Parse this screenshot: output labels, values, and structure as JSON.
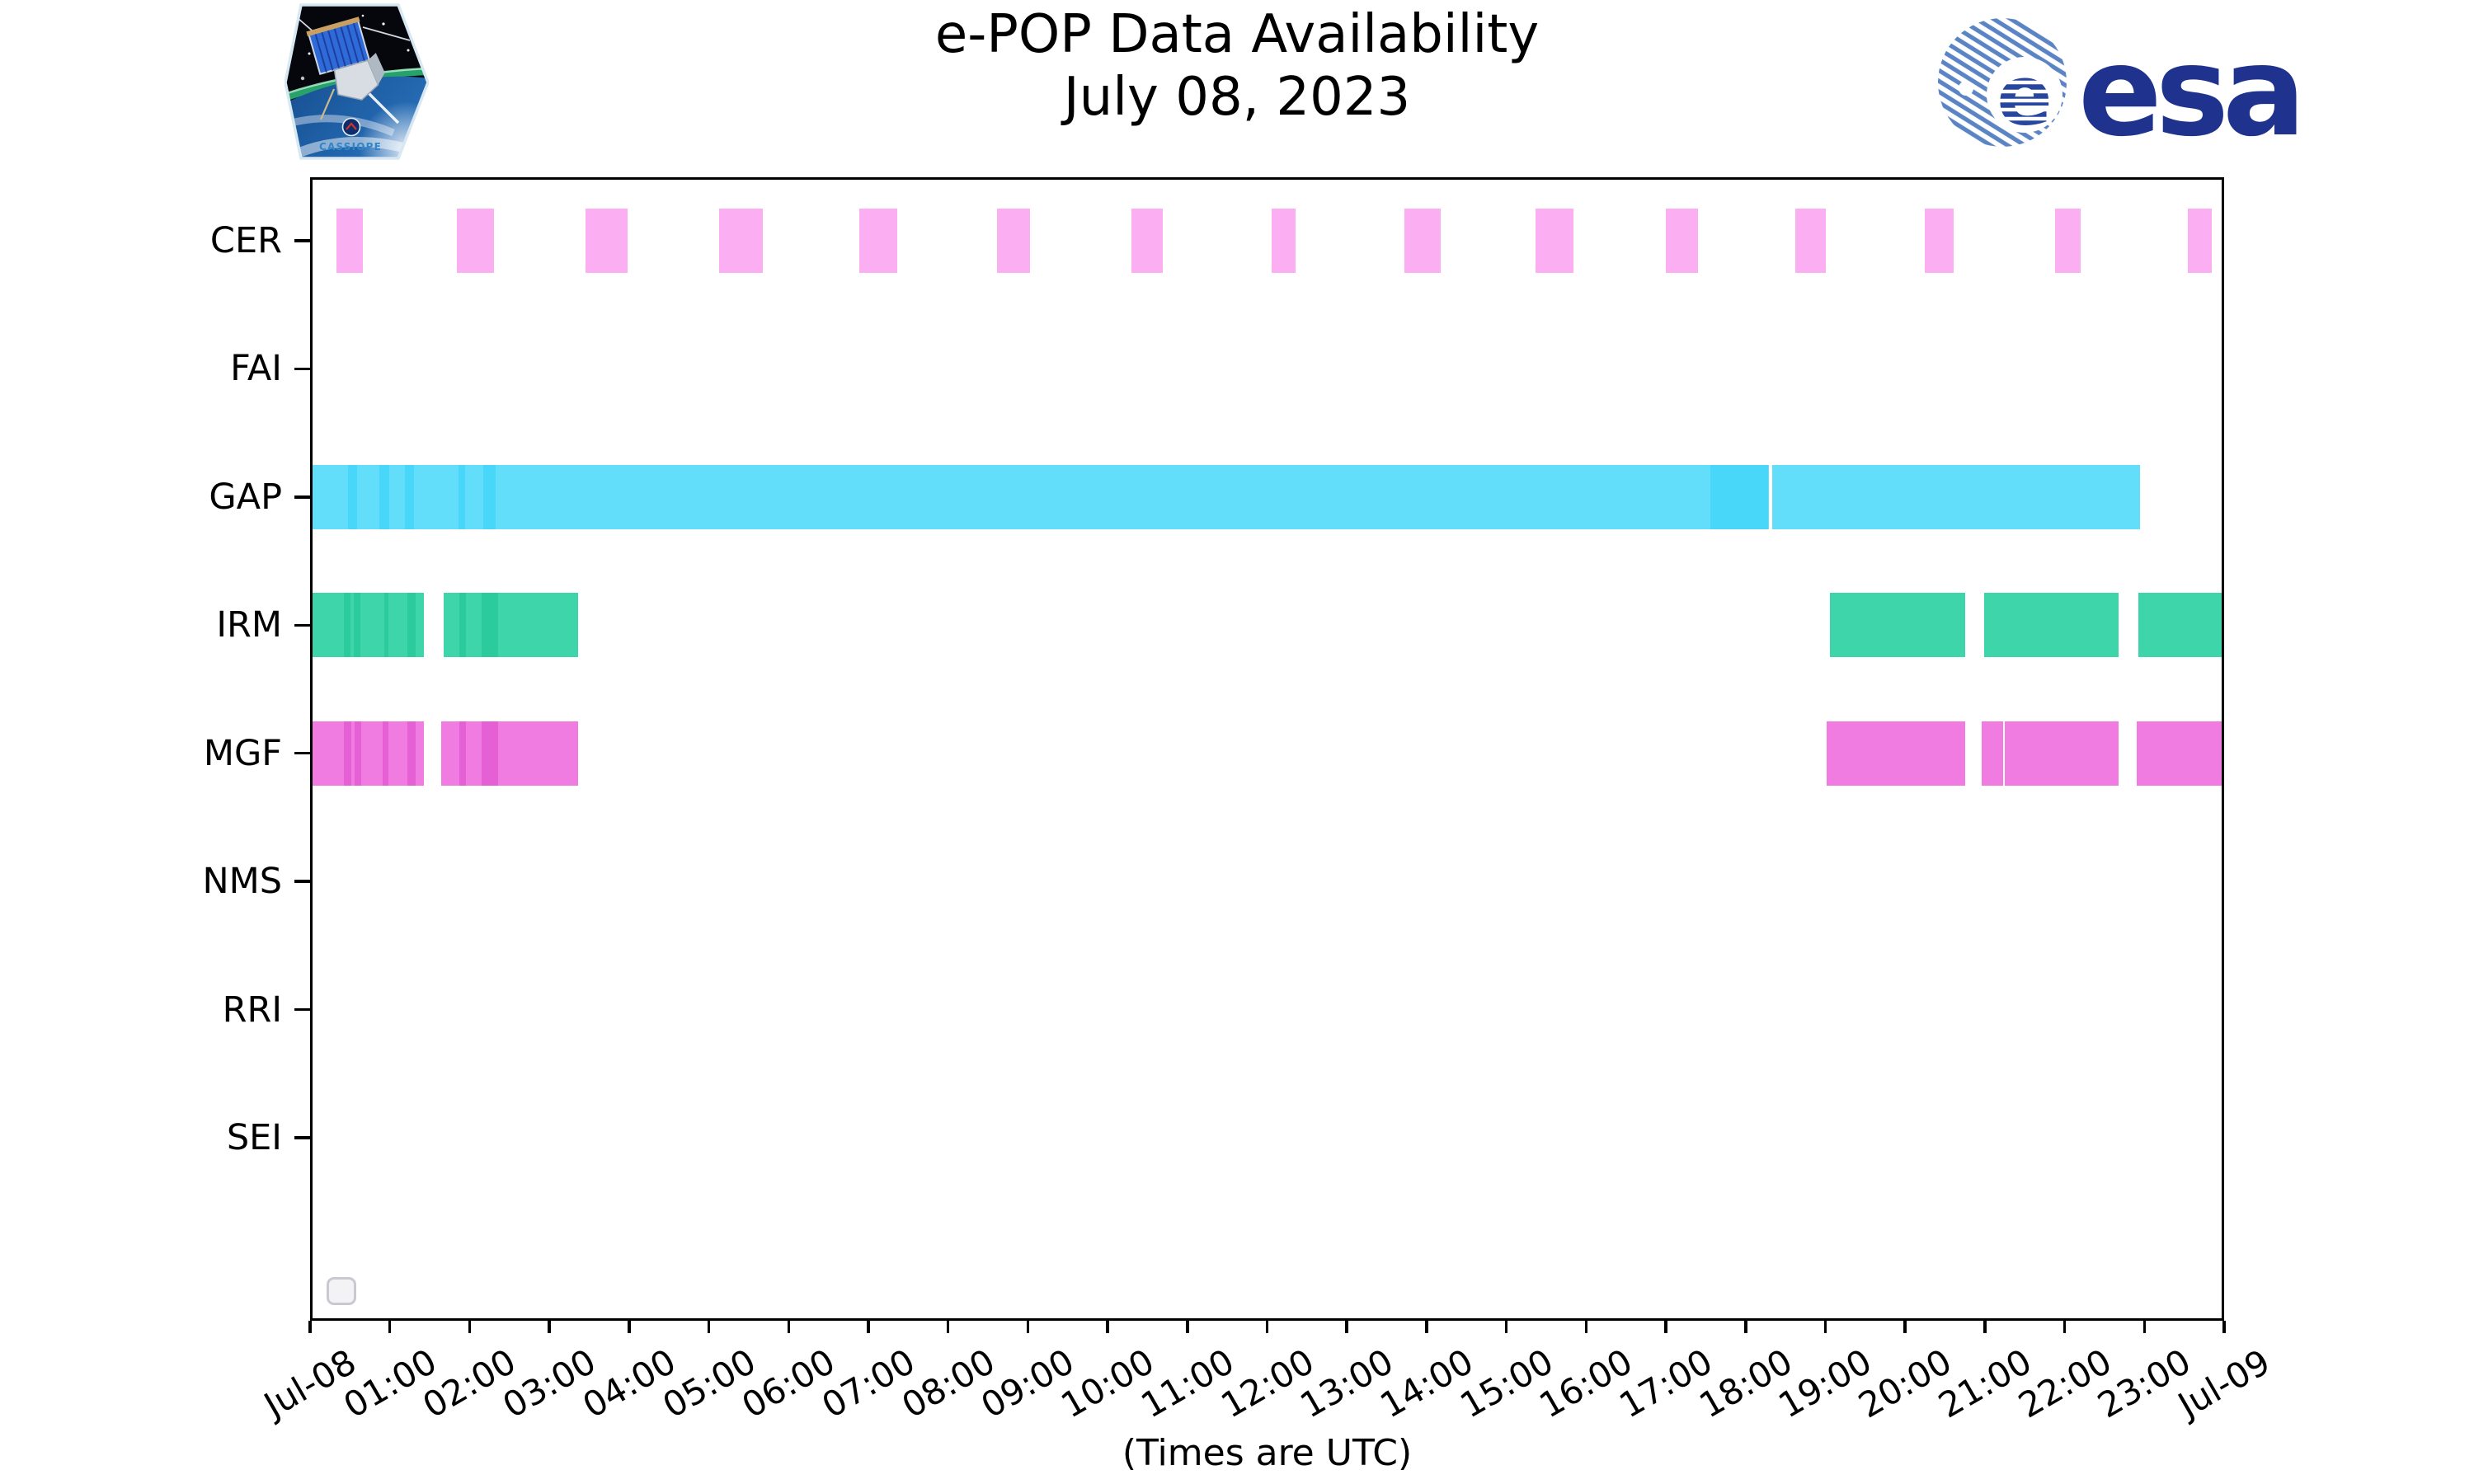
{
  "header": {
    "title_line1": "e-POP Data Availability",
    "title_line2": "July 08, 2023"
  },
  "logos": {
    "cassiope_text": "CASSIOPE",
    "esa_wordmark": "esa"
  },
  "axis": {
    "xlabel": "(Times are UTC)",
    "x_tick_labels": [
      "Jul-08",
      "01:00",
      "02:00",
      "03:00",
      "04:00",
      "05:00",
      "06:00",
      "07:00",
      "08:00",
      "09:00",
      "10:00",
      "11:00",
      "12:00",
      "13:00",
      "14:00",
      "15:00",
      "16:00",
      "17:00",
      "18:00",
      "19:00",
      "20:00",
      "21:00",
      "22:00",
      "23:00",
      "Jul-09"
    ],
    "y_labels": [
      "CER",
      "FAI",
      "GAP",
      "IRM",
      "MGF",
      "NMS",
      "RRI",
      "SEI"
    ]
  },
  "colors": {
    "axis": "#000000",
    "cer": "#fbaef1",
    "gap": "#62defa",
    "gap_dark": "#49d7f9",
    "irm": "#3ed5aa",
    "irm_dark": "#2bcb9e",
    "mgf": "#f07ce1",
    "mgf_dark": "#e55fd5",
    "esa_navy": "#1f338e",
    "esa_ball_blue": "#5b84c4"
  },
  "chart_data": {
    "type": "timeline",
    "title": "e-POP Data Availability",
    "subtitle": "July 08, 2023",
    "x_unit": "hours UTC",
    "x_range": [
      0,
      24
    ],
    "grid": false,
    "rows": [
      {
        "label": "CER",
        "color": "#fbaef1",
        "segments": [
          [
            0.33,
            0.66
          ],
          [
            1.84,
            2.31
          ],
          [
            3.45,
            3.98
          ],
          [
            5.13,
            5.68
          ],
          [
            6.89,
            7.36
          ],
          [
            8.61,
            9.03
          ],
          [
            10.3,
            10.69
          ],
          [
            12.06,
            12.36
          ],
          [
            13.72,
            14.18
          ],
          [
            15.37,
            15.84
          ],
          [
            17.0,
            17.4
          ],
          [
            18.62,
            19.01
          ],
          [
            20.25,
            20.61
          ],
          [
            21.88,
            22.2
          ],
          [
            23.54,
            23.84
          ]
        ],
        "dark_bands": []
      },
      {
        "label": "FAI",
        "color": "#bbbbbb",
        "segments": [],
        "dark_bands": []
      },
      {
        "label": "GAP",
        "color": "#62defa",
        "dark_color": "#49d7f9",
        "segments": [
          [
            0.0,
            18.29
          ],
          [
            18.33,
            22.95
          ]
        ],
        "dark_bands": [
          [
            0.48,
            0.59
          ],
          [
            0.87,
            0.99
          ],
          [
            1.19,
            1.3
          ],
          [
            1.86,
            1.94
          ],
          [
            2.17,
            2.33
          ],
          [
            17.56,
            18.28
          ]
        ]
      },
      {
        "label": "IRM",
        "color": "#3ed5aa",
        "dark_color": "#2bcb9e",
        "segments": [
          [
            0.0,
            1.43
          ],
          [
            1.67,
            3.36
          ],
          [
            19.06,
            20.75
          ],
          [
            20.99,
            22.68
          ],
          [
            22.92,
            24.0
          ]
        ],
        "dark_bands": [
          [
            0.42,
            0.51
          ],
          [
            0.55,
            0.63
          ],
          [
            0.93,
            0.98
          ],
          [
            1.22,
            1.32
          ],
          [
            1.87,
            1.95
          ],
          [
            2.15,
            2.36
          ]
        ]
      },
      {
        "label": "MGF",
        "color": "#f07ce1",
        "dark_color": "#e55fd5",
        "segments": [
          [
            0.0,
            1.43
          ],
          [
            1.64,
            3.36
          ],
          [
            19.02,
            20.75
          ],
          [
            20.96,
            21.23
          ],
          [
            21.25,
            22.68
          ],
          [
            22.9,
            24.0
          ]
        ],
        "dark_bands": [
          [
            0.42,
            0.52
          ],
          [
            0.56,
            0.64
          ],
          [
            0.91,
            0.98
          ],
          [
            1.22,
            1.32
          ],
          [
            1.87,
            1.95
          ],
          [
            2.15,
            2.36
          ]
        ]
      },
      {
        "label": "NMS",
        "color": "#bbbbbb",
        "segments": [],
        "dark_bands": []
      },
      {
        "label": "RRI",
        "color": "#bbbbbb",
        "segments": [],
        "dark_bands": []
      },
      {
        "label": "SEI",
        "color": "#bbbbbb",
        "segments": [],
        "dark_bands": []
      }
    ]
  }
}
